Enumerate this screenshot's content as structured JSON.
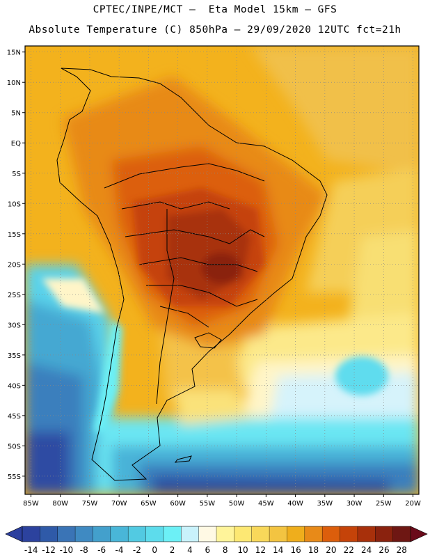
{
  "title_line1": "CPTEC/INPE/MCT –  Eta Model 15km – GFS",
  "title_line2": "Absolute Temperature (C) 850hPa – 29/09/2020 12UTC fct=21h",
  "map": {
    "projection": "lat-lon",
    "lon_range": [
      -86,
      -19
    ],
    "lat_range": [
      -58,
      16
    ],
    "grid": "dotted",
    "lon_ticks": [
      {
        "value": -85,
        "label": "85W"
      },
      {
        "value": -80,
        "label": "80W"
      },
      {
        "value": -75,
        "label": "75W"
      },
      {
        "value": -70,
        "label": "70W"
      },
      {
        "value": -65,
        "label": "65W"
      },
      {
        "value": -60,
        "label": "60W"
      },
      {
        "value": -55,
        "label": "55W"
      },
      {
        "value": -50,
        "label": "50W"
      },
      {
        "value": -45,
        "label": "45W"
      },
      {
        "value": -40,
        "label": "40W"
      },
      {
        "value": -35,
        "label": "35W"
      },
      {
        "value": -30,
        "label": "30W"
      },
      {
        "value": -25,
        "label": "25W"
      },
      {
        "value": -20,
        "label": "20W"
      }
    ],
    "lat_ticks": [
      {
        "value": 15,
        "label": "15N"
      },
      {
        "value": 10,
        "label": "10N"
      },
      {
        "value": 5,
        "label": "5N"
      },
      {
        "value": 0,
        "label": "EQ"
      },
      {
        "value": -5,
        "label": "5S"
      },
      {
        "value": -10,
        "label": "10S"
      },
      {
        "value": -15,
        "label": "15S"
      },
      {
        "value": -20,
        "label": "20S"
      },
      {
        "value": -25,
        "label": "25S"
      },
      {
        "value": -30,
        "label": "30S"
      },
      {
        "value": -35,
        "label": "35S"
      },
      {
        "value": -40,
        "label": "40S"
      },
      {
        "value": -45,
        "label": "45S"
      },
      {
        "value": -50,
        "label": "50S"
      },
      {
        "value": -55,
        "label": "55S"
      }
    ]
  },
  "colorbar": {
    "labels": [
      "-14",
      "-12",
      "-10",
      "-8",
      "-6",
      "-4",
      "-2",
      "0",
      "2",
      "4",
      "6",
      "8",
      "10",
      "12",
      "14",
      "16",
      "18",
      "20",
      "22",
      "24",
      "26",
      "28"
    ],
    "below_color": "#2b3f9e",
    "above_color": "#6a0a1a",
    "colors": [
      "#2c429e",
      "#2f5aa8",
      "#3a74b6",
      "#3f8ac2",
      "#43a0cc",
      "#49b6d8",
      "#52cae2",
      "#5ddcec",
      "#6cf0f6",
      "#c9f2fb",
      "#fff9e4",
      "#fff49a",
      "#fde873",
      "#f8d85a",
      "#f3c441",
      "#efae1c",
      "#e88a18",
      "#dc5e0c",
      "#c54309",
      "#a8300b",
      "#8a220e",
      "#6e1713"
    ]
  }
}
